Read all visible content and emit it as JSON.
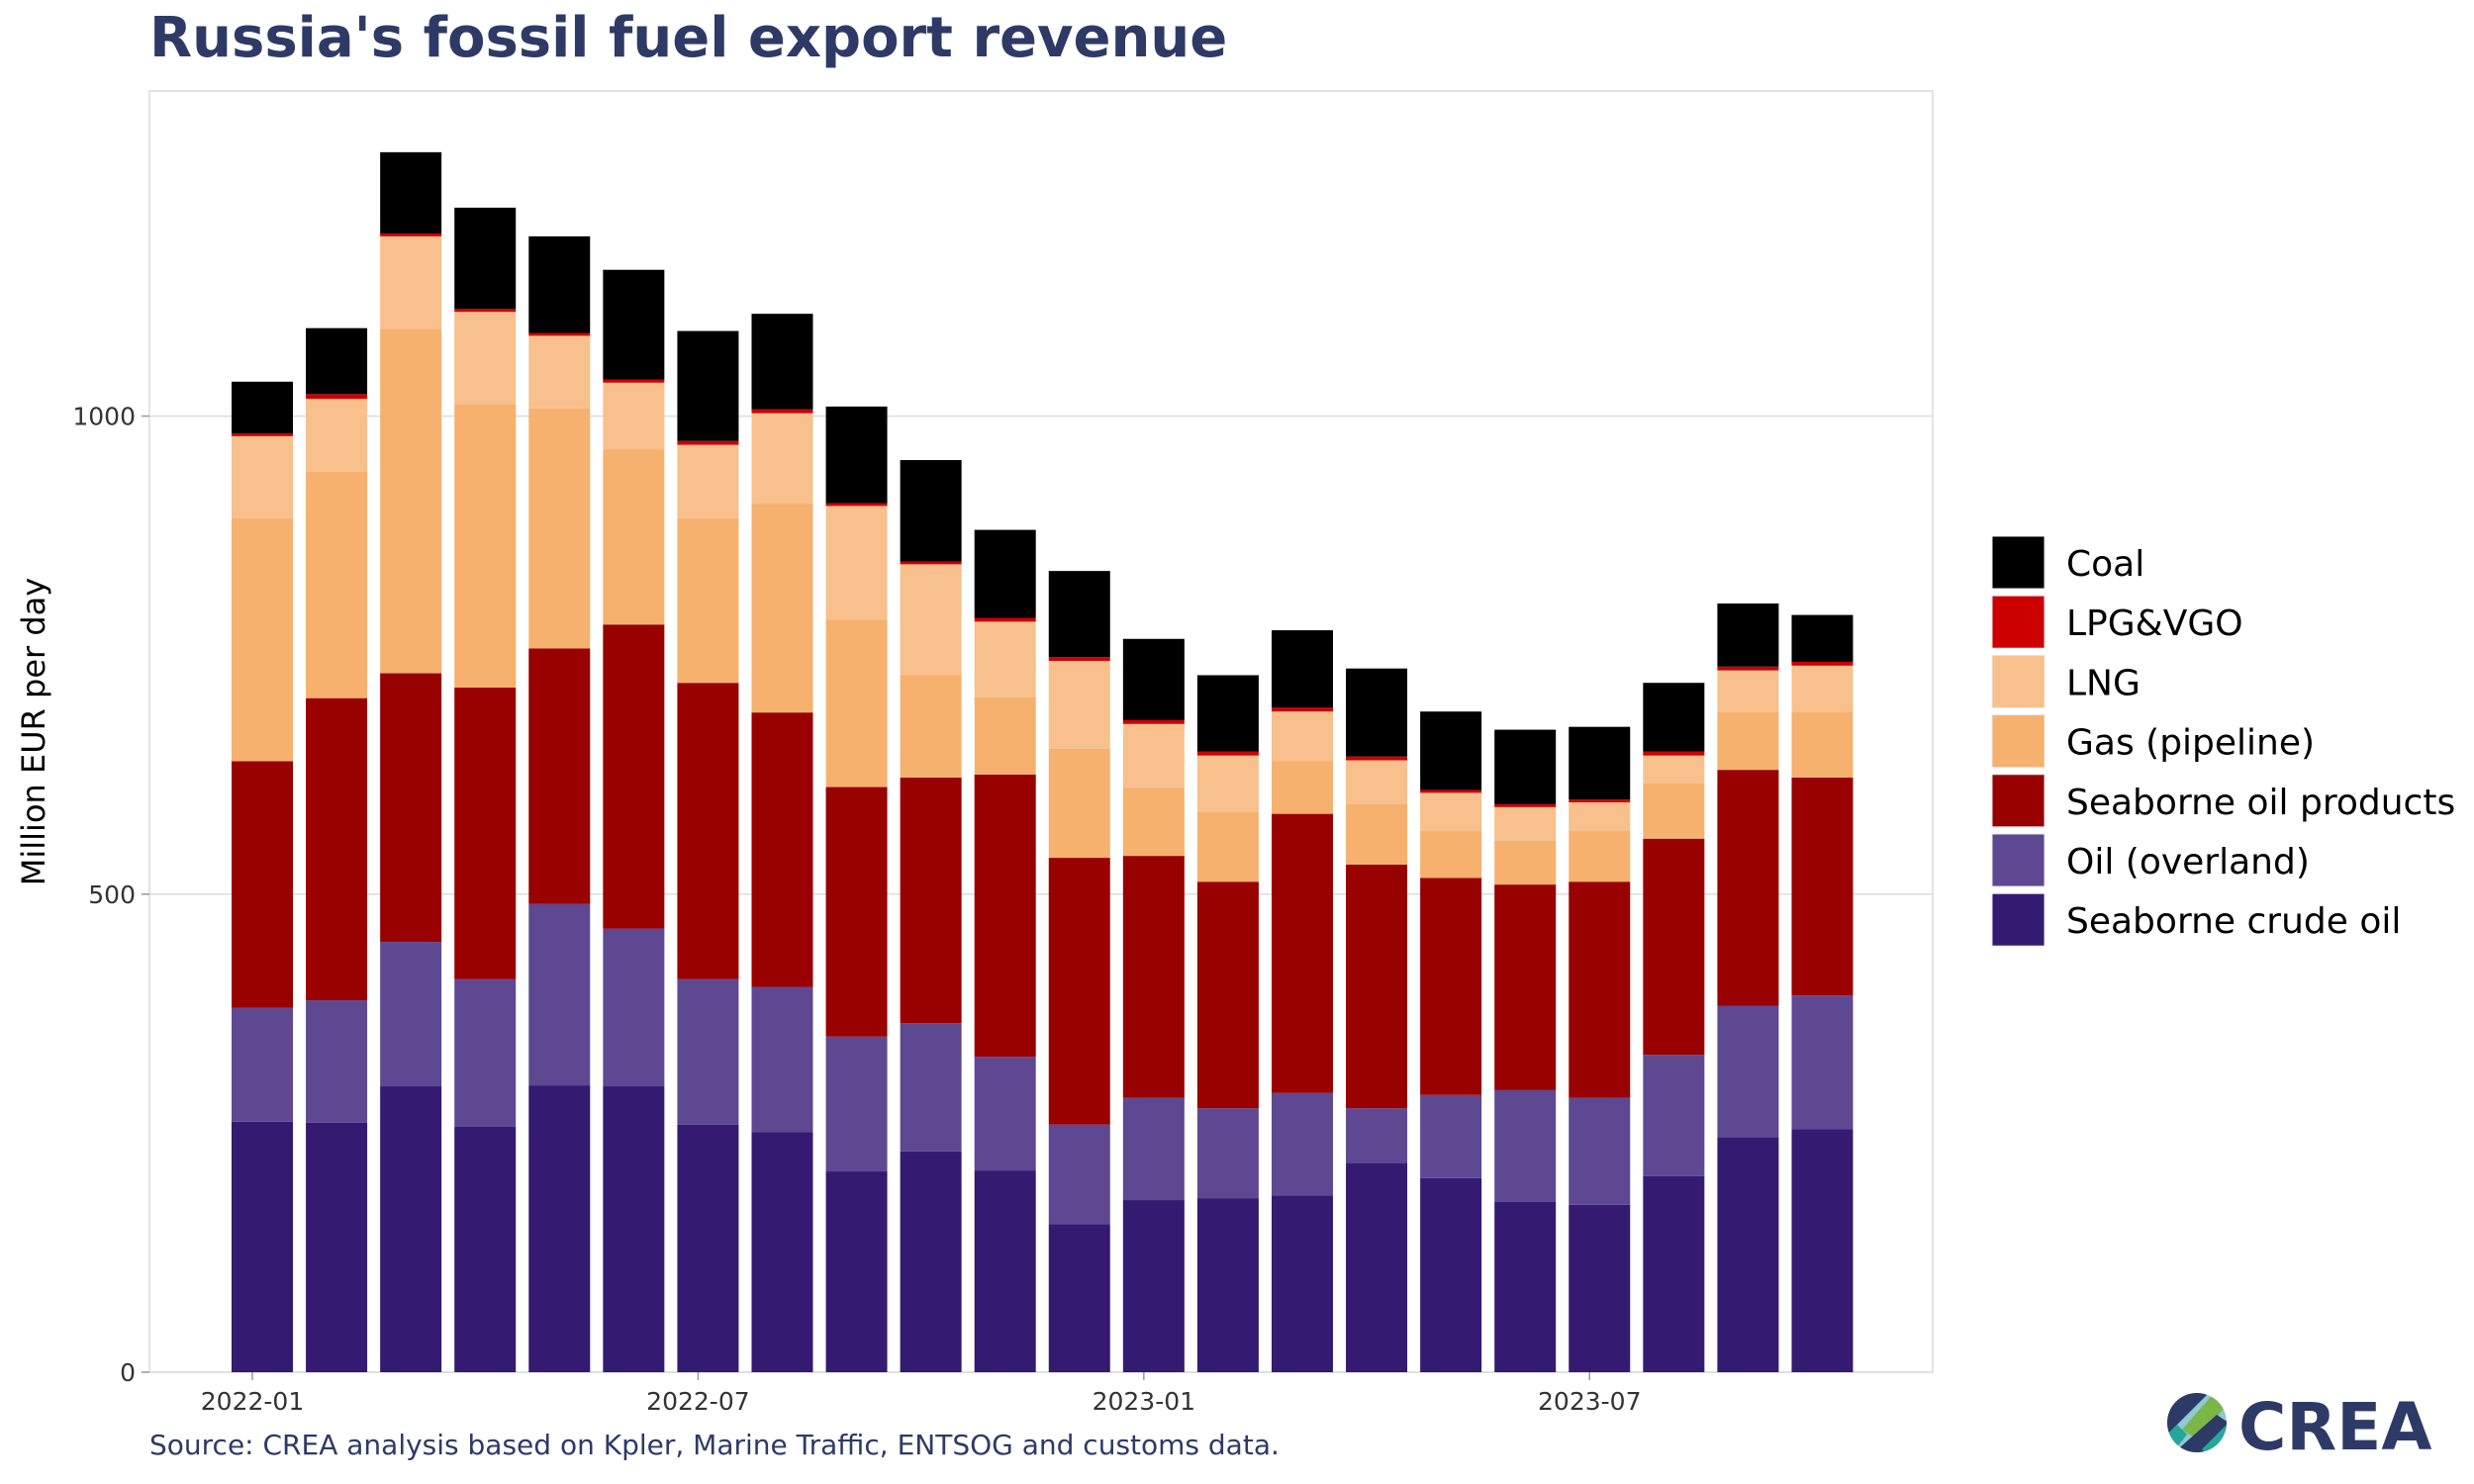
{
  "chart_data": {
    "type": "bar",
    "stacked": true,
    "title": "Russia's fossil fuel export revenue",
    "xlabel": "",
    "ylabel": "Million EUR per day",
    "ylim": [
      0,
      1340
    ],
    "yticks": [
      0,
      500,
      1000
    ],
    "grid": true,
    "legend_position": "right",
    "categories": [
      "2022-01",
      "2022-02",
      "2022-03",
      "2022-04",
      "2022-05",
      "2022-06",
      "2022-07",
      "2022-08",
      "2022-09",
      "2022-10",
      "2022-11",
      "2022-12",
      "2023-01",
      "2023-02",
      "2023-03",
      "2023-04",
      "2023-05",
      "2023-06",
      "2023-07",
      "2023-08",
      "2023-09",
      "2023-10"
    ],
    "xtick_labels": [
      "2022-01",
      "2022-07",
      "2023-01",
      "2023-07"
    ],
    "series": [
      {
        "name": "Seaborne crude oil",
        "color": "#341a70",
        "values": [
          262,
          261,
          299,
          257,
          300,
          299,
          259,
          251,
          210,
          231,
          211,
          155,
          180,
          182,
          185,
          219,
          203,
          178,
          175,
          205,
          246,
          254
        ]
      },
      {
        "name": "Oil (overland)",
        "color": "#5e4891",
        "values": [
          119,
          128,
          151,
          154,
          190,
          165,
          152,
          152,
          141,
          134,
          119,
          104,
          107,
          94,
          107,
          57,
          87,
          117,
          112,
          127,
          137,
          140
        ]
      },
      {
        "name": "Seaborne oil products",
        "color": "#990000",
        "values": [
          258,
          316,
          281,
          305,
          267,
          318,
          310,
          287,
          261,
          257,
          295,
          279,
          253,
          237,
          292,
          255,
          227,
          215,
          226,
          226,
          247,
          228
        ]
      },
      {
        "name": "Gas (pipeline)",
        "color": "#f5b16d",
        "values": [
          254,
          237,
          360,
          296,
          251,
          183,
          172,
          218,
          175,
          107,
          81,
          114,
          71,
          73,
          55,
          63,
          49,
          46,
          53,
          58,
          61,
          69
        ]
      },
      {
        "name": "LNG",
        "color": "#f7c08c",
        "values": [
          86,
          76,
          97,
          97,
          76,
          70,
          77,
          95,
          119,
          116,
          79,
          92,
          67,
          59,
          52,
          46,
          40,
          35,
          30,
          29,
          43,
          48
        ]
      },
      {
        "name": "LPG&VGO",
        "color": "#cc0000",
        "values": [
          3,
          5,
          3,
          3,
          3,
          3,
          4,
          4,
          3,
          3,
          4,
          4,
          4,
          4,
          4,
          4,
          3,
          3,
          3,
          4,
          4,
          4
        ]
      },
      {
        "name": "Coal",
        "color": "#000000",
        "values": [
          54,
          69,
          85,
          106,
          101,
          115,
          115,
          100,
          101,
          106,
          92,
          90,
          85,
          80,
          81,
          92,
          82,
          78,
          76,
          72,
          66,
          49
        ]
      }
    ]
  },
  "source": "Source: CREA analysis based on Kpler, Marine Traffic, ENTSOG and customs data.",
  "logo": {
    "text": "CREA",
    "color": "#2e3a66"
  }
}
